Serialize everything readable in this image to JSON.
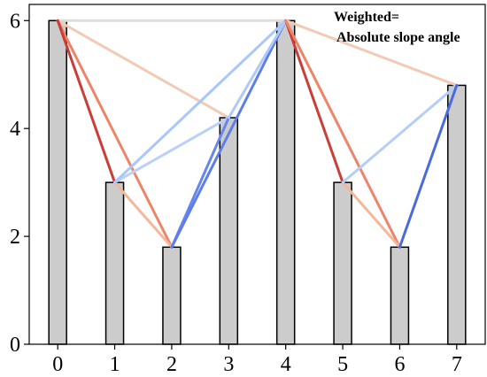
{
  "chart_data": {
    "type": "bar",
    "title": "",
    "xlabel": "",
    "ylabel": "",
    "categories": [
      "0",
      "1",
      "2",
      "3",
      "4",
      "5",
      "6",
      "7"
    ],
    "values": [
      6,
      3,
      1.8,
      4.2,
      6,
      3,
      1.8,
      4.8
    ],
    "ylim": [
      0,
      6.3
    ],
    "yticks": [
      0,
      2,
      4,
      6
    ],
    "grid": false,
    "bar_color": "#cccccc",
    "bar_edge_color": "#000000",
    "annotation": {
      "line1": "Weighted=",
      "line2": "Absolute slope angle"
    },
    "edges": [
      {
        "from": 0,
        "to": 4,
        "color": "#dddddd"
      },
      {
        "from": 0,
        "to": 3,
        "color": "#f2cbb7"
      },
      {
        "from": 0,
        "to": 2,
        "color": "#ee8468"
      },
      {
        "from": 0,
        "to": 1,
        "color": "#cb3e38"
      },
      {
        "from": 1,
        "to": 2,
        "color": "#f4b899"
      },
      {
        "from": 1,
        "to": 3,
        "color": "#bad0f8"
      },
      {
        "from": 1,
        "to": 4,
        "color": "#aac7fd"
      },
      {
        "from": 2,
        "to": 3,
        "color": "#6687ed"
      },
      {
        "from": 2,
        "to": 4,
        "color": "#5f7fe8"
      },
      {
        "from": 3,
        "to": 4,
        "color": "#aec9fc"
      },
      {
        "from": 4,
        "to": 7,
        "color": "#f2cbb7"
      },
      {
        "from": 4,
        "to": 5,
        "color": "#cb3e38"
      },
      {
        "from": 4,
        "to": 6,
        "color": "#ee8468"
      },
      {
        "from": 5,
        "to": 6,
        "color": "#f4b899"
      },
      {
        "from": 5,
        "to": 7,
        "color": "#b5cdfa"
      },
      {
        "from": 6,
        "to": 7,
        "color": "#4a6be0"
      }
    ]
  }
}
